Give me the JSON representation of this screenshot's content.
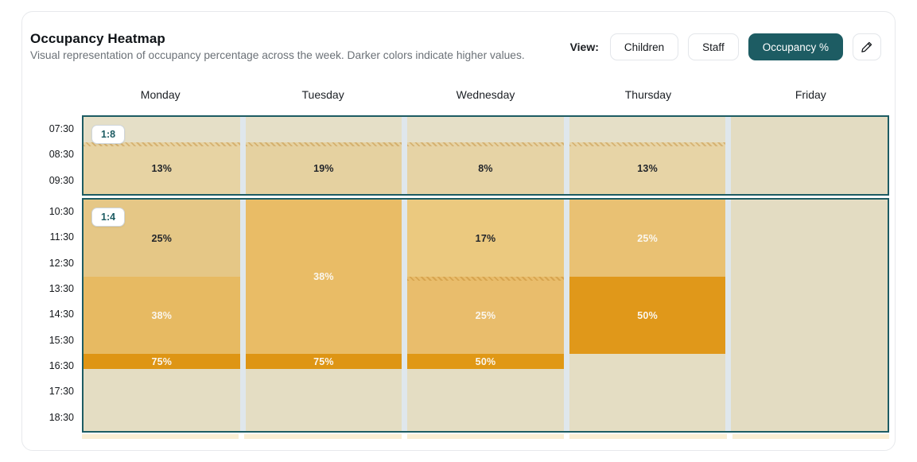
{
  "header": {
    "title": "Occupancy Heatmap",
    "subtitle": "Visual representation of occupancy percentage across the week. Darker colors indicate higher values.",
    "view_label": "View:",
    "view_options": [
      {
        "label": "Children",
        "active": false
      },
      {
        "label": "Staff",
        "active": false
      },
      {
        "label": "Occupancy %",
        "active": true
      }
    ],
    "edit_icon": "pencil-icon"
  },
  "colors": {
    "accent_teal": "#1d5c63",
    "region_border": "#1d5c63",
    "column_gap": "#dfe7ec",
    "empty_cell": "#e4ddc3",
    "empty_cell_morning": "#e5dfc7",
    "bottom_strip": "#faeed3"
  },
  "chart_data": {
    "type": "heatmap",
    "title": "Occupancy Heatmap",
    "days": [
      "Monday",
      "Tuesday",
      "Wednesday",
      "Thursday",
      "Friday"
    ],
    "time_labels": [
      "07:30",
      "08:30",
      "09:30",
      "10:30",
      "11:30",
      "12:30",
      "13:30",
      "14:30",
      "15:30",
      "16:30",
      "17:30",
      "18:30"
    ],
    "time_range": {
      "start": "07:30",
      "end": "19:30"
    },
    "regions": [
      {
        "ratio_badge": "1:8",
        "start": "07:30",
        "end": "10:30",
        "hours": 3,
        "columns": [
          {
            "day": "Monday",
            "bands": [
              {
                "hours": 1,
                "value": null,
                "label": "",
                "color": "#e5dfc7"
              },
              {
                "hours": 2,
                "value": 13,
                "label": "13%",
                "color": "#e7d3a3",
                "text": "#23262b",
                "hatch": true
              }
            ]
          },
          {
            "day": "Tuesday",
            "bands": [
              {
                "hours": 1,
                "value": null,
                "label": "",
                "color": "#e5dfc7"
              },
              {
                "hours": 2,
                "value": 19,
                "label": "19%",
                "color": "#e5d1a0",
                "text": "#23262b",
                "hatch": true
              }
            ]
          },
          {
            "day": "Wednesday",
            "bands": [
              {
                "hours": 1,
                "value": null,
                "label": "",
                "color": "#e5dfc7"
              },
              {
                "hours": 2,
                "value": 8,
                "label": "8%",
                "color": "#e6d3a5",
                "text": "#23262b",
                "hatch": true
              }
            ]
          },
          {
            "day": "Thursday",
            "bands": [
              {
                "hours": 1,
                "value": null,
                "label": "",
                "color": "#e5dfc7"
              },
              {
                "hours": 2,
                "value": 13,
                "label": "13%",
                "color": "#e7d4a6",
                "text": "#23262b",
                "hatch": true
              }
            ]
          },
          {
            "day": "Friday",
            "bands": [
              {
                "hours": 3,
                "value": null,
                "label": "",
                "color": "#e3dcc2"
              }
            ]
          }
        ]
      },
      {
        "ratio_badge": "1:4",
        "start": "10:30",
        "end": "19:30",
        "hours": 9,
        "columns": [
          {
            "day": "Monday",
            "bands": [
              {
                "hours": 3,
                "value": 25,
                "label": "25%",
                "color": "#e5c786",
                "text": "#23262b"
              },
              {
                "hours": 3,
                "value": 38,
                "label": "38%",
                "color": "#e7ba62",
                "text": "#faf6ee"
              },
              {
                "hours": 0.59,
                "value": 75,
                "label": "75%",
                "color": "#de9514",
                "text": "#faf6ee"
              },
              {
                "hours": 2.41,
                "value": null,
                "label": "",
                "color": "#e4ddc3"
              }
            ]
          },
          {
            "day": "Tuesday",
            "bands": [
              {
                "hours": 6,
                "value": 38,
                "label": "38%",
                "color": "#e9bc66",
                "text": "#faf6ee"
              },
              {
                "hours": 0.59,
                "value": 75,
                "label": "75%",
                "color": "#de9514",
                "text": "#faf6ee"
              },
              {
                "hours": 2.41,
                "value": null,
                "label": "",
                "color": "#e4ddc3"
              }
            ]
          },
          {
            "day": "Wednesday",
            "bands": [
              {
                "hours": 3,
                "value": 17,
                "label": "17%",
                "color": "#ebc97f",
                "text": "#23262b"
              },
              {
                "hours": 3,
                "value": 25,
                "label": "25%",
                "color": "#e9bd6c",
                "text": "#faf6ee",
                "hatch": true
              },
              {
                "hours": 0.59,
                "value": 50,
                "label": "50%",
                "color": "#e09815",
                "text": "#faf6ee"
              },
              {
                "hours": 2.41,
                "value": null,
                "label": "",
                "color": "#e4ddc3"
              }
            ]
          },
          {
            "day": "Thursday",
            "bands": [
              {
                "hours": 3,
                "value": 25,
                "label": "25%",
                "color": "#e9c173",
                "text": "#faf6ee"
              },
              {
                "hours": 3,
                "value": 50,
                "label": "50%",
                "color": "#e0981a",
                "text": "#faf6ee"
              },
              {
                "hours": 3,
                "value": null,
                "label": "",
                "color": "#e4ddc3"
              }
            ]
          },
          {
            "day": "Friday",
            "bands": [
              {
                "hours": 9,
                "value": null,
                "label": "",
                "color": "#e3dcc2"
              }
            ]
          }
        ]
      }
    ]
  }
}
